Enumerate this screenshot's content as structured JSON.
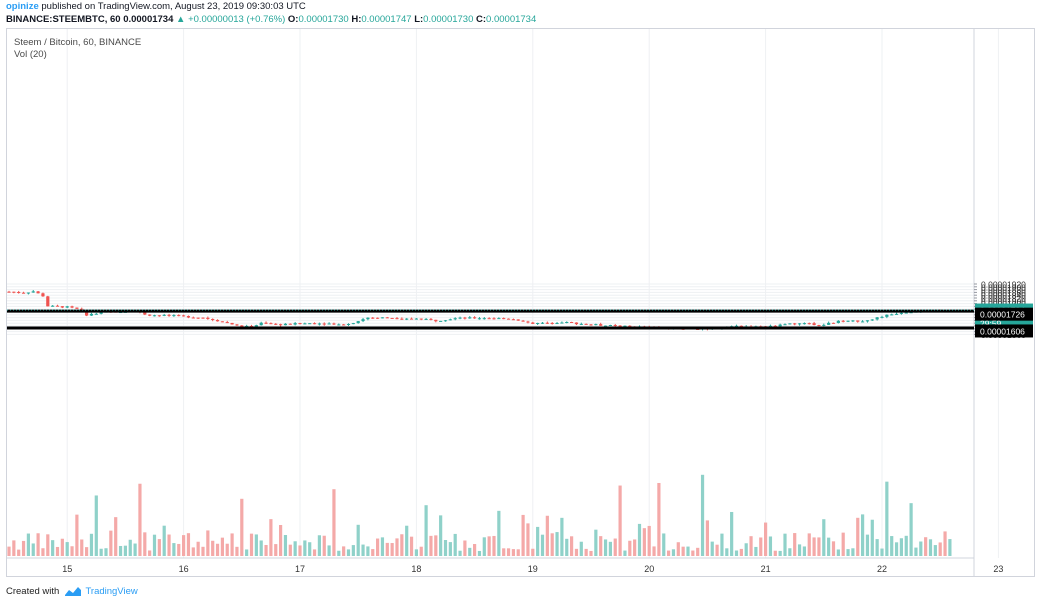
{
  "header": {
    "publisher": "opinize",
    "published_text": "published on TradingView.com, August 23, 2019 09:30:03 UTC",
    "symbol_line": "BINANCE:STEEMBTC, 60",
    "last": "0.00001734",
    "change_arrow": "▲",
    "change": "+0.00000013 (+0.76%)",
    "o_label": "O:",
    "o_value": "0.00001730",
    "h_label": "H:",
    "h_value": "0.00001747",
    "l_label": "L:",
    "l_value": "0.00001730",
    "c_label": "C:",
    "c_value": "0.00001734"
  },
  "legend": {
    "title": "Steem / Bitcoin, 60, BINANCE",
    "volume": "Vol (20)"
  },
  "footer": {
    "created_with": "Created with",
    "brand": "TradingView"
  },
  "colors": {
    "up": "#26a69a",
    "down": "#ef5350",
    "vol_up": "#8fd1c9",
    "vol_down": "#f4a9a8",
    "grid": "#eef0f3",
    "line": "#000000",
    "last_price": "#26a69a"
  },
  "chart_data": {
    "type": "candlestick",
    "title": "Steem / Bitcoin, 60, BINANCE",
    "ylim": [
      1.54e-05,
      1.93e-05
    ],
    "y_ticks": [
      "0.00001920",
      "0.00001900",
      "0.00001880",
      "0.00001860",
      "0.00001840",
      "0.00001820",
      "0.00001800",
      "0.00001780",
      "0.00001760",
      "0.00001740",
      "0.00001720",
      "0.00001700",
      "0.00001680",
      "0.00001660",
      "0.00001640",
      "0.00001620",
      "0.00001600",
      "0.00001580",
      "0.00001560"
    ],
    "x_ticks": [
      "15",
      "16",
      "17",
      "18",
      "19",
      "20",
      "21",
      "22",
      "23"
    ],
    "last_price_label": "0.00001734",
    "countdown_label": "29:59",
    "horizontal_lines": [
      {
        "price": 1.726e-05,
        "label": "0.00001726"
      },
      {
        "price": 1.606e-05,
        "label": "0.00001606"
      }
    ],
    "anchors": [
      {
        "hour": 0,
        "price": 1.865e-05
      },
      {
        "hour": 3,
        "price": 1.858e-05
      },
      {
        "hour": 5,
        "price": 1.868e-05
      },
      {
        "hour": 7,
        "price": 1.835e-05
      },
      {
        "hour": 8,
        "price": 1.762e-05
      },
      {
        "hour": 12,
        "price": 1.755e-05
      },
      {
        "hour": 14,
        "price": 1.74e-05
      },
      {
        "hour": 16,
        "price": 1.7e-05
      },
      {
        "hour": 20,
        "price": 1.718e-05
      },
      {
        "hour": 26,
        "price": 1.73e-05
      },
      {
        "hour": 28,
        "price": 1.7e-05
      },
      {
        "hour": 34,
        "price": 1.692e-05
      },
      {
        "hour": 40,
        "price": 1.68e-05
      },
      {
        "hour": 44,
        "price": 1.65e-05
      },
      {
        "hour": 48,
        "price": 1.615e-05
      },
      {
        "hour": 50,
        "price": 1.615e-05
      },
      {
        "hour": 52,
        "price": 1.64e-05
      },
      {
        "hour": 56,
        "price": 1.63e-05
      },
      {
        "hour": 62,
        "price": 1.64e-05
      },
      {
        "hour": 70,
        "price": 1.634e-05
      },
      {
        "hour": 74,
        "price": 1.68e-05
      },
      {
        "hour": 80,
        "price": 1.678e-05
      },
      {
        "hour": 84,
        "price": 1.672e-05
      },
      {
        "hour": 88,
        "price": 1.658e-05
      },
      {
        "hour": 92,
        "price": 1.675e-05
      },
      {
        "hour": 98,
        "price": 1.678e-05
      },
      {
        "hour": 104,
        "price": 1.67e-05
      },
      {
        "hour": 108,
        "price": 1.638e-05
      },
      {
        "hour": 114,
        "price": 1.648e-05
      },
      {
        "hour": 120,
        "price": 1.63e-05
      },
      {
        "hour": 126,
        "price": 1.618e-05
      },
      {
        "hour": 132,
        "price": 1.612e-05
      },
      {
        "hour": 138,
        "price": 1.603e-05
      },
      {
        "hour": 144,
        "price": 1.6e-05
      },
      {
        "hour": 150,
        "price": 1.62e-05
      },
      {
        "hour": 156,
        "price": 1.612e-05
      },
      {
        "hour": 162,
        "price": 1.638e-05
      },
      {
        "hour": 168,
        "price": 1.63e-05
      },
      {
        "hour": 172,
        "price": 1.66e-05
      },
      {
        "hour": 176,
        "price": 1.652e-05
      },
      {
        "hour": 180,
        "price": 1.69e-05
      },
      {
        "hour": 184,
        "price": 1.718e-05
      },
      {
        "hour": 188,
        "price": 1.73e-05
      },
      {
        "hour": 190,
        "price": 1.724e-05
      },
      {
        "hour": 194,
        "price": 1.734e-05
      }
    ]
  }
}
